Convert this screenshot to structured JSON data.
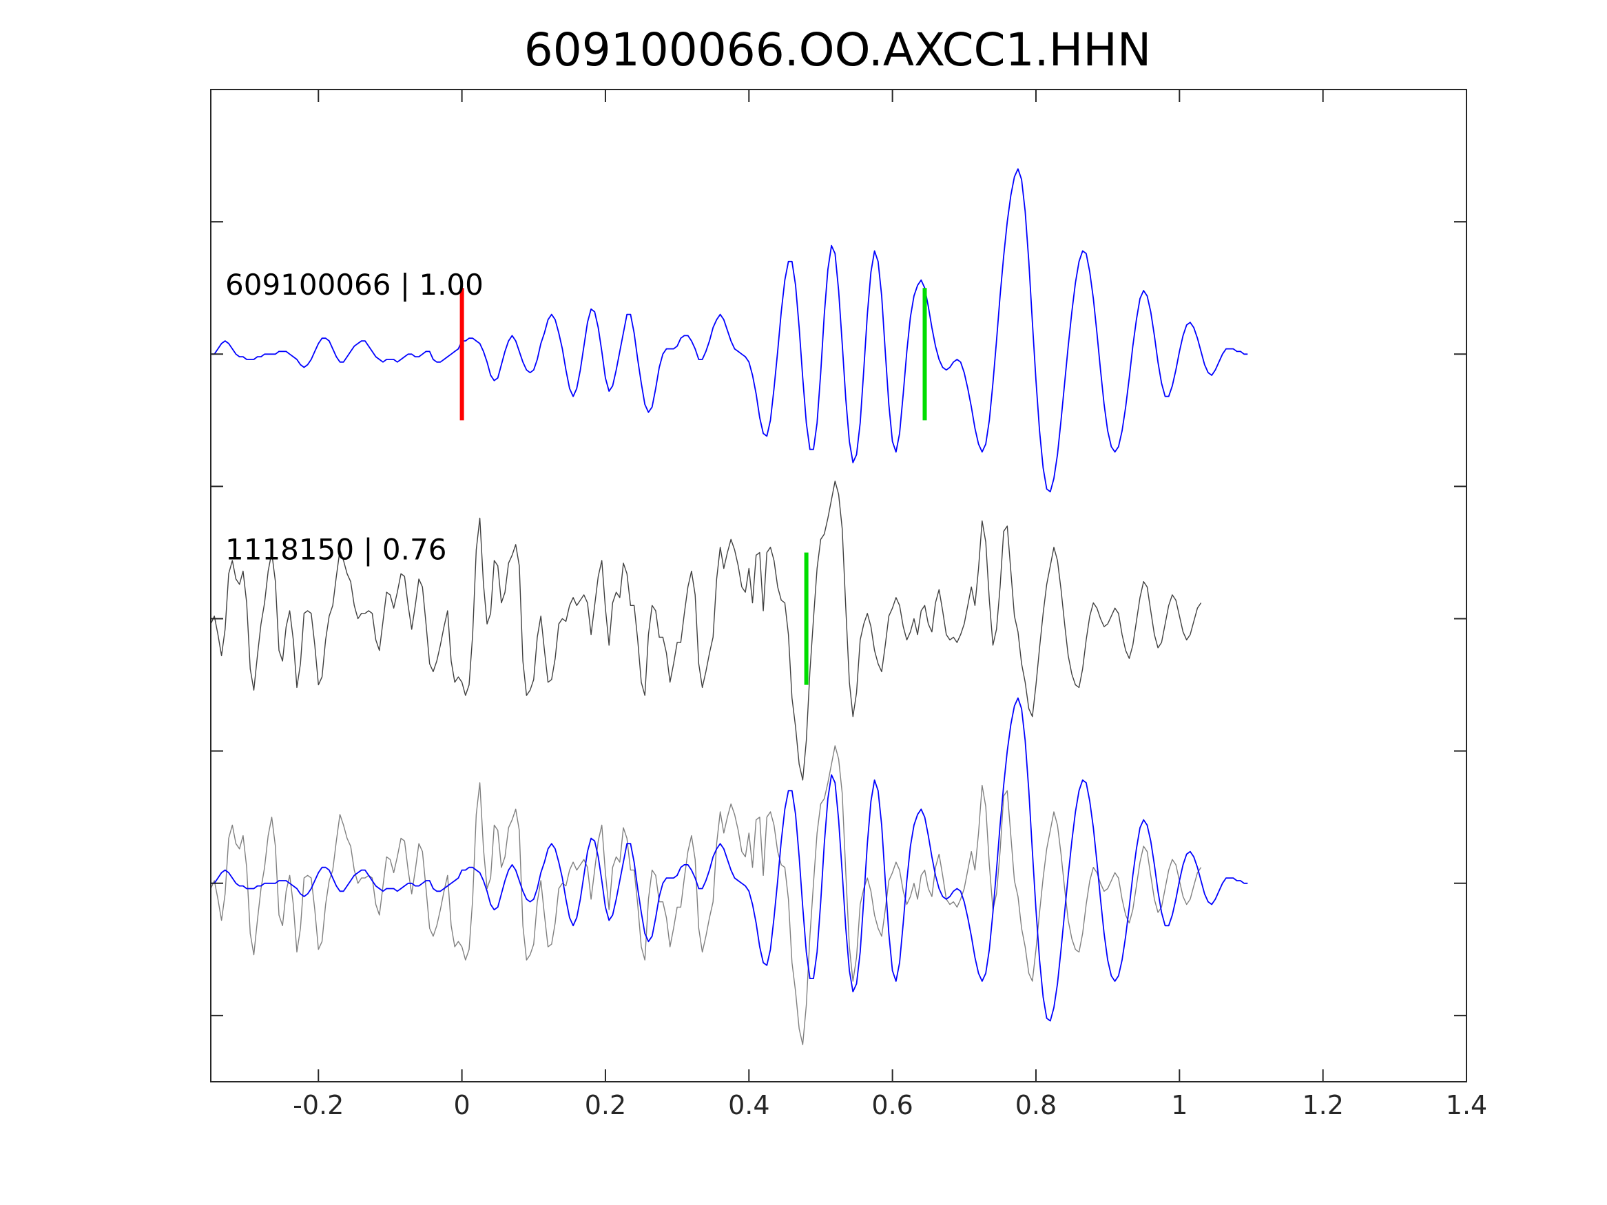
{
  "chart_data": {
    "type": "line",
    "title": "609100066.OO.AXCC1.HHN",
    "xlabel": "",
    "ylabel": "",
    "xlim": [
      -0.35,
      1.4
    ],
    "grid": false,
    "x_ticks": [
      "-0.2",
      "0",
      "0.2",
      "0.4",
      "0.6",
      "0.8",
      "1",
      "1.2",
      "1.4"
    ],
    "x_tick_values": [
      -0.2,
      0,
      0.2,
      0.4,
      0.6,
      0.8,
      1,
      1.2,
      1.4
    ],
    "y_ticks": [
      "",
      "",
      "",
      "",
      "",
      "",
      ""
    ],
    "y_tick_values": [
      -0.5,
      0,
      0.5,
      1,
      1.5,
      2,
      2.5
    ],
    "ylim": [
      -0.75,
      3.0
    ],
    "sample_dt": 0.005,
    "traces": [
      {
        "label": "609100066 | 1.00",
        "color": "#0000ff",
        "stroke_width": 1.8,
        "offset": 2,
        "x_start": -0.35,
        "y": [
          0,
          0,
          0.02,
          0.04,
          0.05,
          0.04,
          0.02,
          0,
          -0.01,
          -0.01,
          -0.02,
          -0.02,
          -0.02,
          -0.01,
          -0.01,
          0,
          0,
          0,
          0,
          0.01,
          0.01,
          0.01,
          0,
          -0.01,
          -0.02,
          -0.04,
          -0.05,
          -0.04,
          -0.02,
          0.01,
          0.04,
          0.06,
          0.06,
          0.05,
          0.02,
          -0.01,
          -0.03,
          -0.03,
          -0.01,
          0.01,
          0.03,
          0.04,
          0.05,
          0.05,
          0.03,
          0.01,
          -0.01,
          -0.02,
          -0.03,
          -0.02,
          -0.02,
          -0.02,
          -0.03,
          -0.02,
          -0.01,
          0,
          0,
          -0.01,
          -0.01,
          0,
          0.01,
          0.01,
          -0.02,
          -0.03,
          -0.03,
          -0.02,
          -0.01,
          0,
          0.01,
          0.02,
          0.05,
          0.05,
          0.06,
          0.06,
          0.05,
          0.04,
          0.01,
          -0.03,
          -0.08,
          -0.1,
          -0.09,
          -0.04,
          0.01,
          0.05,
          0.07,
          0.05,
          0.01,
          -0.03,
          -0.06,
          -0.07,
          -0.06,
          -0.02,
          0.04,
          0.08,
          0.13,
          0.15,
          0.13,
          0.08,
          0.02,
          -0.06,
          -0.13,
          -0.16,
          -0.13,
          -0.06,
          0.03,
          0.12,
          0.17,
          0.16,
          0.1,
          0.01,
          -0.09,
          -0.14,
          -0.12,
          -0.06,
          0.01,
          0.08,
          0.15,
          0.15,
          0.08,
          -0.02,
          -0.11,
          -0.19,
          -0.22,
          -0.2,
          -0.13,
          -0.05,
          0,
          0.02,
          0.02,
          0.02,
          0.03,
          0.06,
          0.07,
          0.07,
          0.05,
          0.02,
          -0.02,
          -0.02,
          0.01,
          0.05,
          0.1,
          0.13,
          0.15,
          0.13,
          0.09,
          0.05,
          0.02,
          0.01,
          0,
          -0.01,
          -0.03,
          -0.08,
          -0.15,
          -0.24,
          -0.3,
          -0.31,
          -0.25,
          -0.13,
          0.01,
          0.16,
          0.28,
          0.35,
          0.35,
          0.26,
          0.1,
          -0.09,
          -0.26,
          -0.36,
          -0.36,
          -0.26,
          -0.07,
          0.15,
          0.32,
          0.41,
          0.38,
          0.24,
          0.04,
          -0.17,
          -0.33,
          -0.41,
          -0.38,
          -0.26,
          -0.06,
          0.15,
          0.31,
          0.39,
          0.35,
          0.22,
          0.01,
          -0.19,
          -0.33,
          -0.37,
          -0.3,
          -0.15,
          0.01,
          0.14,
          0.22,
          0.26,
          0.28,
          0.25,
          0.18,
          0.1,
          0.03,
          -0.02,
          -0.05,
          -0.06,
          -0.05,
          -0.03,
          -0.02,
          -0.03,
          -0.07,
          -0.13,
          -0.2,
          -0.28,
          -0.34,
          -0.37,
          -0.34,
          -0.25,
          -0.11,
          0.05,
          0.22,
          0.37,
          0.5,
          0.6,
          0.67,
          0.7,
          0.66,
          0.54,
          0.35,
          0.12,
          -0.1,
          -0.29,
          -0.43,
          -0.51,
          -0.52,
          -0.47,
          -0.38,
          -0.25,
          -0.11,
          0.03,
          0.16,
          0.27,
          0.35,
          0.39,
          0.38,
          0.31,
          0.21,
          0.08,
          -0.06,
          -0.19,
          -0.29,
          -0.35,
          -0.37,
          -0.35,
          -0.29,
          -0.2,
          -0.09,
          0.03,
          0.13,
          0.21,
          0.24,
          0.22,
          0.16,
          0.07,
          -0.03,
          -0.11,
          -0.16,
          -0.16,
          -0.12,
          -0.06,
          0.01,
          0.07,
          0.11,
          0.12,
          0.1,
          0.06,
          0.01,
          -0.04,
          -0.07,
          -0.08,
          -0.06,
          -0.03,
          0,
          0.02,
          0.02,
          0.02,
          0.01,
          0.01,
          0,
          0
        ]
      },
      {
        "label": "1118150 | 0.76",
        "color": "#404040",
        "stroke_width": 1.4,
        "offset": 1,
        "x_start": -0.35,
        "y": [
          -0.02,
          0.01,
          -0.06,
          -0.14,
          -0.04,
          0.17,
          0.22,
          0.15,
          0.13,
          0.18,
          0.06,
          -0.19,
          -0.27,
          -0.14,
          -0.02,
          0.06,
          0.18,
          0.25,
          0.14,
          -0.12,
          -0.16,
          -0.03,
          0.03,
          -0.08,
          -0.26,
          -0.17,
          0.02,
          0.03,
          0.02,
          -0.1,
          -0.25,
          -0.22,
          -0.08,
          0.01,
          0.05,
          0.16,
          0.26,
          0.22,
          0.17,
          0.14,
          0.05,
          0,
          0.02,
          0.02,
          0.03,
          0.02,
          -0.08,
          -0.12,
          -0.01,
          0.1,
          0.09,
          0.04,
          0.1,
          0.17,
          0.16,
          0.05,
          -0.04,
          0.05,
          0.15,
          0.12,
          -0.02,
          -0.17,
          -0.2,
          -0.16,
          -0.1,
          -0.03,
          0.03,
          -0.16,
          -0.24,
          -0.22,
          -0.24,
          -0.29,
          -0.25,
          -0.06,
          0.26,
          0.38,
          0.13,
          -0.02,
          0.02,
          0.22,
          0.2,
          0.06,
          0.1,
          0.21,
          0.24,
          0.28,
          0.2,
          -0.16,
          -0.29,
          -0.27,
          -0.23,
          -0.07,
          0.01,
          -0.12,
          -0.24,
          -0.23,
          -0.15,
          -0.02,
          0,
          -0.01,
          0.05,
          0.08,
          0.05,
          0.07,
          0.09,
          0.06,
          -0.06,
          0.05,
          0.16,
          0.22,
          0.04,
          -0.1,
          0.06,
          0.1,
          0.08,
          0.21,
          0.17,
          0.05,
          0.05,
          -0.08,
          -0.24,
          -0.29,
          -0.06,
          0.05,
          0.03,
          -0.07,
          -0.07,
          -0.13,
          -0.24,
          -0.17,
          -0.09,
          -0.09,
          0.02,
          0.12,
          0.18,
          0.09,
          -0.17,
          -0.26,
          -0.2,
          -0.13,
          -0.07,
          0.15,
          0.27,
          0.19,
          0.25,
          0.3,
          0.26,
          0.2,
          0.12,
          0.1,
          0.19,
          0.06,
          0.24,
          0.25,
          0.03,
          0.25,
          0.27,
          0.22,
          0.12,
          0.07,
          0.06,
          -0.06,
          -0.3,
          -0.41,
          -0.55,
          -0.61,
          -0.46,
          -0.2,
          0,
          0.19,
          0.3,
          0.32,
          0.38,
          0.45,
          0.52,
          0.47,
          0.34,
          0.04,
          -0.24,
          -0.37,
          -0.28,
          -0.08,
          -0.02,
          0.02,
          -0.03,
          -0.12,
          -0.17,
          -0.2,
          -0.1,
          0.01,
          0.04,
          0.08,
          0.05,
          -0.03,
          -0.08,
          -0.05,
          0,
          -0.06,
          0.03,
          0.05,
          -0.02,
          -0.05,
          0.06,
          0.11,
          0.03,
          -0.06,
          -0.08,
          -0.07,
          -0.09,
          -0.06,
          -0.02,
          0.05,
          0.12,
          0.05,
          0.19,
          0.37,
          0.29,
          0.07,
          -0.1,
          -0.04,
          0.12,
          0.33,
          0.35,
          0.18,
          0.01,
          -0.05,
          -0.17,
          -0.24,
          -0.34,
          -0.37,
          -0.25,
          -0.11,
          0.02,
          0.13,
          0.2,
          0.27,
          0.22,
          0.11,
          -0.02,
          -0.14,
          -0.21,
          -0.25,
          -0.26,
          -0.19,
          -0.08,
          0.01,
          0.06,
          0.04,
          0.0,
          -0.03,
          -0.02,
          0.01,
          0.04,
          0.02,
          -0.06,
          -0.12,
          -0.15,
          -0.1,
          -0.01,
          0.08,
          0.14,
          0.12,
          0.03,
          -0.06,
          -0.11,
          -0.09,
          -0.02,
          0.05,
          0.09,
          0.07,
          0.01,
          -0.05,
          -0.08,
          -0.06,
          -0.01,
          0.04,
          0.06
        ]
      }
    ],
    "overlay_trace": {
      "offset": 0,
      "color_a": "#808080",
      "color_b": "#0000ff"
    },
    "markers": [
      {
        "x": 0.0,
        "trace": 0,
        "color": "#ff0000"
      },
      {
        "x": 0.645,
        "trace": 0,
        "color": "#00dd00"
      },
      {
        "x": 0.48,
        "trace": 1,
        "color": "#00dd00"
      }
    ]
  }
}
